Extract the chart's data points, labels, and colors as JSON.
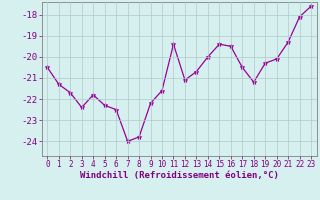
{
  "x": [
    0,
    1,
    2,
    3,
    4,
    5,
    6,
    7,
    8,
    9,
    10,
    11,
    12,
    13,
    14,
    15,
    16,
    17,
    18,
    19,
    20,
    21,
    22,
    23
  ],
  "y": [
    -20.5,
    -21.3,
    -21.7,
    -22.4,
    -21.8,
    -22.3,
    -22.5,
    -24.0,
    -23.8,
    -22.2,
    -21.6,
    -19.4,
    -21.1,
    -20.7,
    -20.0,
    -19.4,
    -19.5,
    -20.5,
    -21.2,
    -20.3,
    -20.1,
    -19.3,
    -18.1,
    -17.6
  ],
  "line_color": "#990099",
  "marker": "*",
  "marker_size": 3.5,
  "bg_color": "#d6f0f0",
  "grid_color": "#b0c8c8",
  "xlabel": "Windchill (Refroidissement éolien,°C)",
  "yticks": [
    -18,
    -19,
    -20,
    -21,
    -22,
    -23,
    -24
  ],
  "xtick_labels": [
    "0",
    "1",
    "2",
    "3",
    "4",
    "5",
    "6",
    "7",
    "8",
    "9",
    "10",
    "11",
    "12",
    "13",
    "14",
    "15",
    "16",
    "17",
    "18",
    "19",
    "20",
    "21",
    "22",
    "23"
  ],
  "xticks": [
    0,
    1,
    2,
    3,
    4,
    5,
    6,
    7,
    8,
    9,
    10,
    11,
    12,
    13,
    14,
    15,
    16,
    17,
    18,
    19,
    20,
    21,
    22,
    23
  ],
  "ylim": [
    -24.7,
    -17.4
  ],
  "xlim": [
    -0.5,
    23.5
  ],
  "xlabel_fontsize": 6.5,
  "tick_fontsize": 5.5,
  "ytick_fontsize": 6.5
}
